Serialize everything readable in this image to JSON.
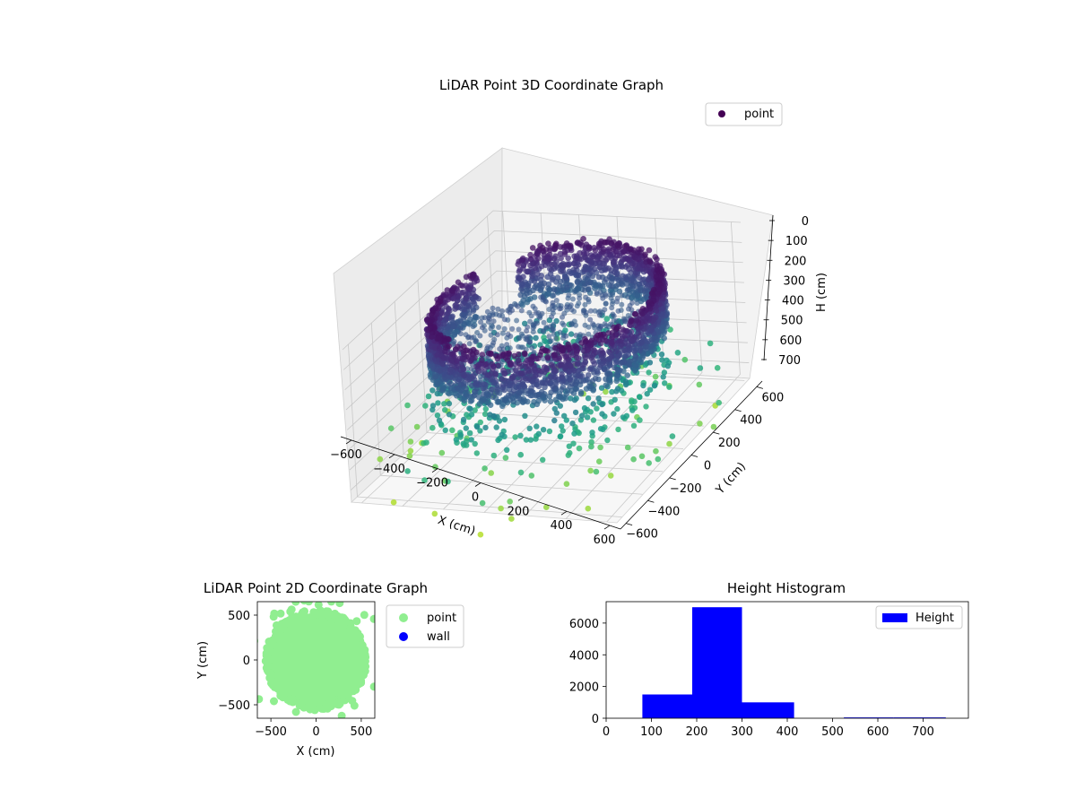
{
  "chart_data": [
    {
      "type": "scatter3d",
      "title": "LiDAR Point 3D Coordinate Graph",
      "xlabel": "X (cm)",
      "ylabel": "Y (cm)",
      "zlabel": "H (cm)",
      "x_ticks": [
        -600,
        -400,
        -200,
        0,
        200,
        400,
        600
      ],
      "y_ticks": [
        -600,
        -400,
        -200,
        0,
        200,
        400,
        600
      ],
      "z_ticks": [
        0,
        100,
        200,
        300,
        400,
        500,
        600,
        700
      ],
      "xlim": [
        -650,
        650
      ],
      "ylim": [
        -650,
        650
      ],
      "zlim": [
        0,
        760
      ],
      "z_inverted": true,
      "colormap": "viridis",
      "grid": true,
      "legend": {
        "entries": [
          "point"
        ],
        "placement": "top-right"
      },
      "series": [
        {
          "name": "point",
          "description_points": [
            {
              "x": 0,
              "y": 0,
              "h": 230
            },
            {
              "x": 520,
              "y": 0,
              "h": 150
            },
            {
              "x": -520,
              "y": 0,
              "h": 150
            },
            {
              "x": 0,
              "y": 520,
              "h": 150
            },
            {
              "x": 0,
              "y": -520,
              "h": 150
            }
          ]
        }
      ]
    },
    {
      "type": "scatter",
      "title": "LiDAR Point 2D Coordinate Graph",
      "xlabel": "X (cm)",
      "ylabel": "Y (cm)",
      "x_ticks": [
        -500,
        0,
        500
      ],
      "y_ticks": [
        -500,
        0,
        500
      ],
      "xlim": [
        -650,
        650
      ],
      "ylim": [
        -650,
        650
      ],
      "legend": {
        "entries": [
          "point",
          "wall"
        ],
        "placement": "outside-right"
      },
      "series": [
        {
          "name": "point",
          "color": "#90ee90",
          "disk_radius": 520
        },
        {
          "name": "wall",
          "color": "#0000ff"
        }
      ]
    },
    {
      "type": "histogram",
      "title": "Height Histogram",
      "xlabel": "",
      "ylabel": "",
      "x_ticks": [
        0,
        100,
        200,
        300,
        400,
        500,
        600,
        700
      ],
      "y_ticks": [
        0,
        2000,
        4000,
        6000
      ],
      "xlim": [
        0,
        800
      ],
      "ylim": [
        0,
        7350
      ],
      "legend": {
        "entries": [
          "Height"
        ],
        "placement": "top-right"
      },
      "series": [
        {
          "name": "Height",
          "color": "#0000ff",
          "bins": [
            {
              "x0": 80,
              "x1": 190,
              "count": 1500
            },
            {
              "x0": 190,
              "x1": 300,
              "count": 7000
            },
            {
              "x0": 300,
              "x1": 415,
              "count": 1000
            },
            {
              "x0": 415,
              "x1": 525,
              "count": 0
            },
            {
              "x0": 525,
              "x1": 635,
              "count": 50
            },
            {
              "x0": 635,
              "x1": 750,
              "count": 50
            }
          ]
        }
      ]
    }
  ]
}
